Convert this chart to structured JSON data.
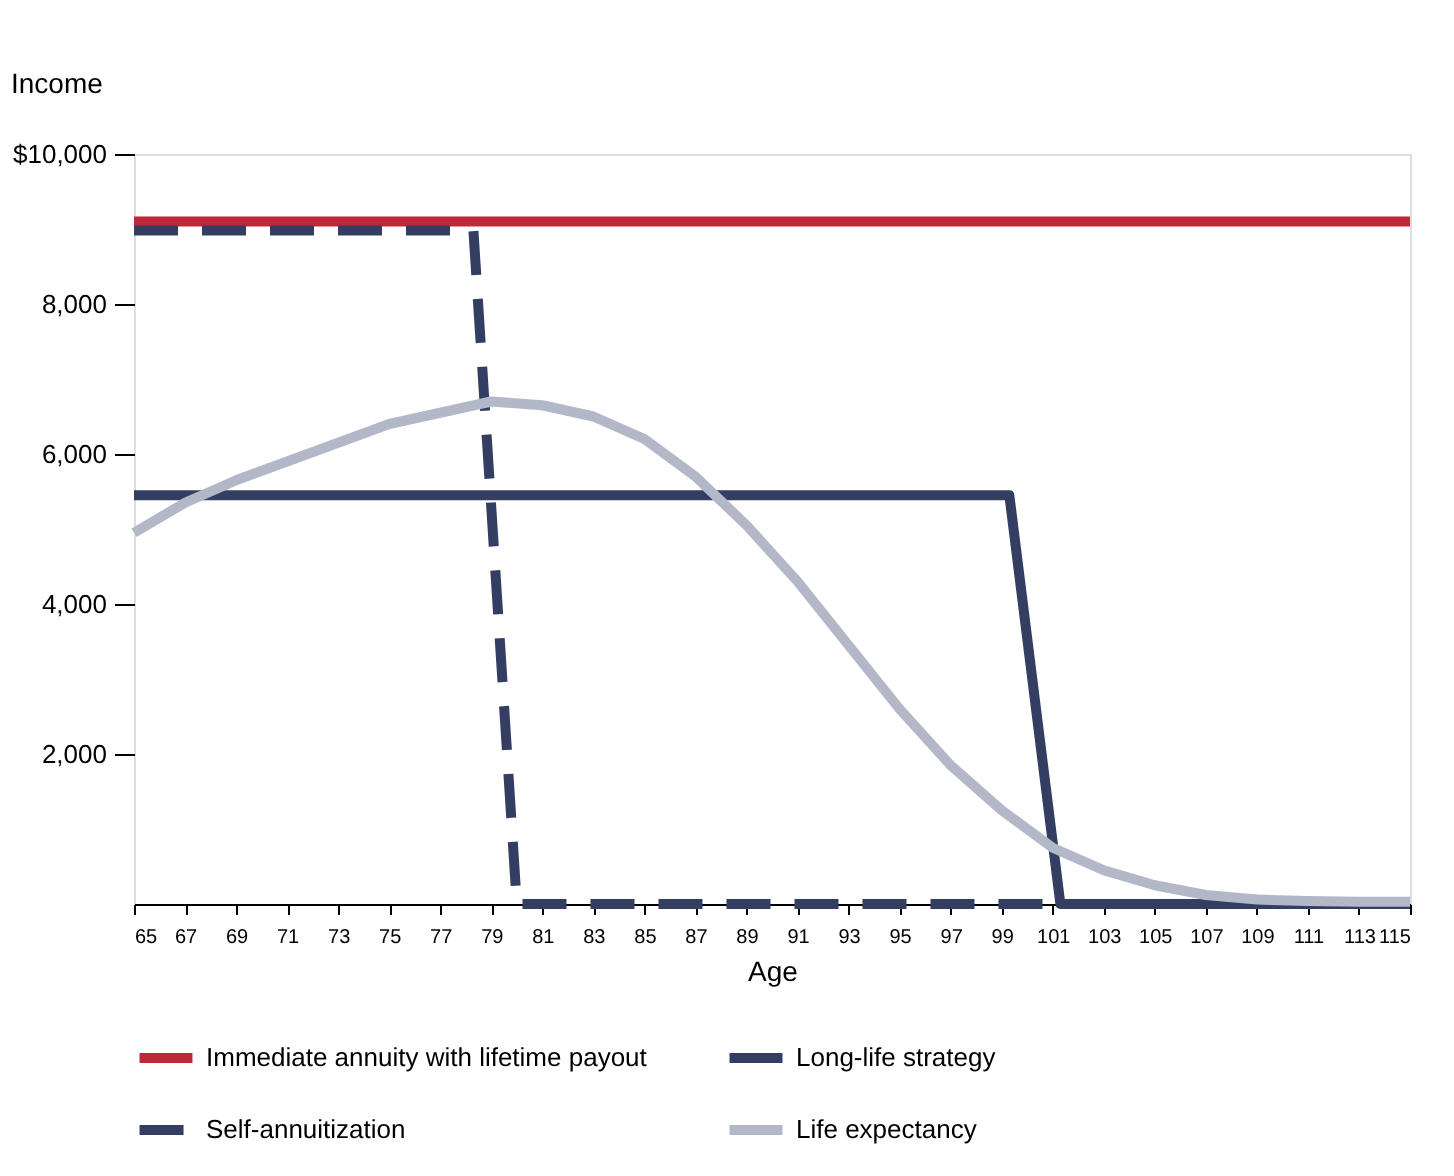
{
  "chart_data": {
    "type": "line",
    "xlabel": "Age",
    "ylabel": "Income",
    "xlim": [
      65,
      115
    ],
    "xticks": [
      65,
      67,
      69,
      71,
      73,
      75,
      77,
      79,
      81,
      83,
      85,
      87,
      89,
      91,
      93,
      95,
      97,
      99,
      101,
      103,
      105,
      107,
      109,
      111,
      113,
      115
    ],
    "ylim": [
      0,
      10000
    ],
    "yticks": [
      {
        "value": 2000,
        "label": "2,000"
      },
      {
        "value": 4000,
        "label": "4,000"
      },
      {
        "value": 6000,
        "label": "6,000"
      },
      {
        "value": 8000,
        "label": "8,000"
      },
      {
        "value": 10000,
        "label": "$10,000"
      }
    ],
    "grid": false,
    "legend": "bottom",
    "marker": "none",
    "series": [
      {
        "name": "Immediate annuity with lifetime payout",
        "color": "#c0283a",
        "line_style": "solid",
        "x": [
          65,
          115
        ],
        "values": [
          9100,
          9100
        ]
      },
      {
        "name": "Long-life strategy",
        "color": "#343e62",
        "line_style": "solid",
        "x": [
          65,
          99.3,
          101.3,
          115
        ],
        "values": [
          5450,
          5450,
          0,
          0
        ]
      },
      {
        "name": "Self-annuitization",
        "color": "#343e62",
        "line_style": "dashed",
        "x": [
          65,
          78.3,
          80,
          115
        ],
        "values": [
          8980,
          8980,
          0,
          0
        ]
      },
      {
        "name": "Life expectancy",
        "color": "#b3b8c8",
        "line_style": "solid",
        "x": [
          65,
          67,
          69,
          71,
          73,
          75,
          77,
          79,
          81,
          83,
          85,
          87,
          89,
          91,
          93,
          95,
          97,
          99,
          101,
          103,
          105,
          107,
          109,
          111,
          113,
          115
        ],
        "values": [
          4950,
          5350,
          5650,
          5900,
          6150,
          6400,
          6550,
          6700,
          6650,
          6500,
          6200,
          5700,
          5050,
          4300,
          3450,
          2600,
          1850,
          1250,
          750,
          450,
          250,
          120,
          60,
          40,
          30,
          30
        ]
      }
    ]
  }
}
